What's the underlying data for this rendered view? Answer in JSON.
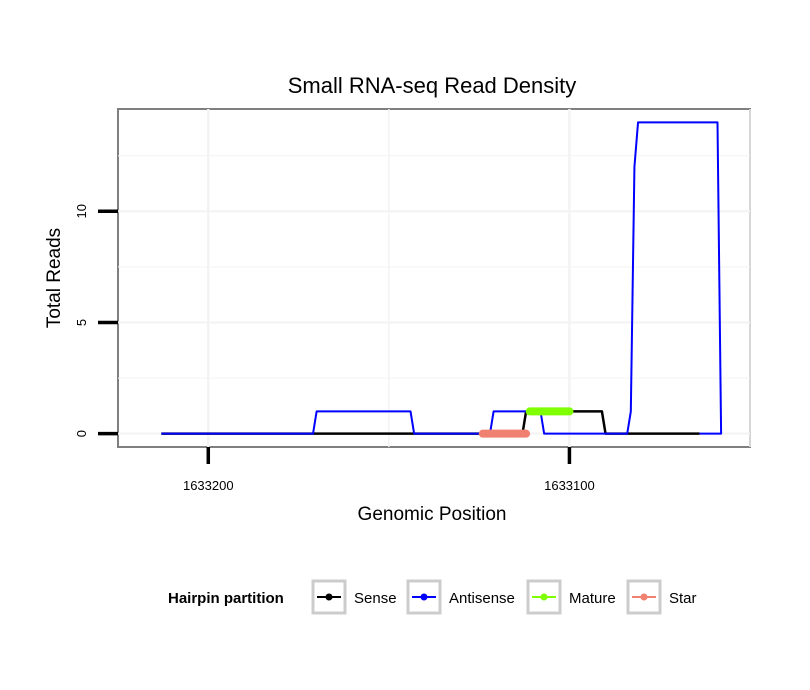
{
  "chart_data": {
    "type": "line",
    "title": "Small RNA-seq Read Density",
    "xlabel": "Genomic Position",
    "ylabel": "Total Reads",
    "x_reversed": true,
    "xlim": [
      1633225,
      1633050
    ],
    "ylim": [
      -0.6,
      14.6
    ],
    "x_ticks": [
      1633200,
      1633100
    ],
    "x_tick_labels": [
      "1633200",
      "1633100"
    ],
    "y_ticks": [
      0,
      5,
      10
    ],
    "y_tick_labels": [
      "0",
      "5",
      "10"
    ],
    "series": [
      {
        "name": "Sense",
        "color": "#000000",
        "x": [
          1633213,
          1633113,
          1633112,
          1633111,
          1633091,
          1633090,
          1633064
        ],
        "y": [
          0,
          0,
          1,
          1,
          1,
          0,
          0
        ]
      },
      {
        "name": "Antisense",
        "color": "#0000ff",
        "x": [
          1633213,
          1633171,
          1633170,
          1633144,
          1633143,
          1633122,
          1633121,
          1633108,
          1633107,
          1633097,
          1633096,
          1633084,
          1633083,
          1633082,
          1633081,
          1633059,
          1633058,
          1633064
        ],
        "y": [
          0,
          0,
          1,
          1,
          0,
          0,
          1,
          1,
          0,
          0,
          0,
          0,
          1,
          12,
          14,
          14,
          0,
          0
        ]
      },
      {
        "name": "Mature",
        "color": "#7fff00",
        "x": [
          1633111,
          1633100
        ],
        "y": [
          1,
          1
        ]
      },
      {
        "name": "Star",
        "color": "#f08070",
        "x": [
          1633124,
          1633112
        ],
        "y": [
          0,
          0
        ]
      }
    ],
    "legend": {
      "title": "Hairpin partition",
      "position": "bottom",
      "entries": [
        {
          "label": "Sense",
          "color": "#000000"
        },
        {
          "label": "Antisense",
          "color": "#0000ff"
        },
        {
          "label": "Mature",
          "color": "#7fff00"
        },
        {
          "label": "Star",
          "color": "#f08070"
        }
      ]
    },
    "grid": true
  }
}
